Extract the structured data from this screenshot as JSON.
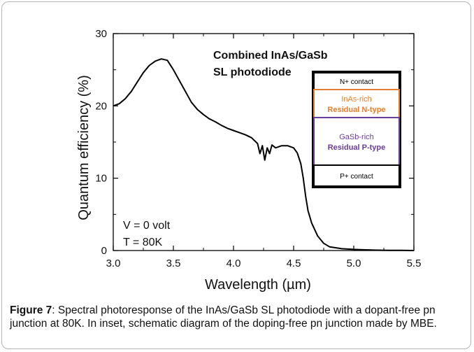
{
  "chart_data": {
    "type": "line",
    "xlabel": "Wavelength (µm)",
    "ylabel": "Quantum efficiency (%)",
    "xlim": [
      3.0,
      5.5
    ],
    "ylim": [
      0,
      30
    ],
    "xticks": [
      "3.0",
      "3.5",
      "4.0",
      "4.5",
      "5.0",
      "5.5"
    ],
    "yticks": [
      "0",
      "10",
      "20",
      "30"
    ],
    "grid": false,
    "series": [
      {
        "color": "#000000",
        "x": [
          3.0,
          3.05,
          3.1,
          3.15,
          3.2,
          3.25,
          3.3,
          3.35,
          3.4,
          3.45,
          3.5,
          3.55,
          3.6,
          3.65,
          3.7,
          3.75,
          3.8,
          3.85,
          3.9,
          3.95,
          4.0,
          4.05,
          4.1,
          4.15,
          4.2,
          4.22,
          4.24,
          4.26,
          4.28,
          4.3,
          4.32,
          4.35,
          4.4,
          4.45,
          4.5,
          4.53,
          4.56,
          4.58,
          4.6,
          4.62,
          4.65,
          4.7,
          4.75,
          4.8,
          4.9,
          5.0,
          5.1,
          5.2,
          5.3,
          5.4,
          5.5
        ],
        "y": [
          20.0,
          20.3,
          21.0,
          22.0,
          23.3,
          24.6,
          25.6,
          26.2,
          26.5,
          26.3,
          25.0,
          23.5,
          22.0,
          20.5,
          19.5,
          18.8,
          18.2,
          17.8,
          17.3,
          16.9,
          16.6,
          16.3,
          16.0,
          15.6,
          14.8,
          13.4,
          14.5,
          12.5,
          14.2,
          13.4,
          14.6,
          14.2,
          14.5,
          14.5,
          14.2,
          13.5,
          12.0,
          10.0,
          7.5,
          5.5,
          3.8,
          2.0,
          1.0,
          0.5,
          0.25,
          0.15,
          0.1,
          0.05,
          0.03,
          0.02,
          0.0
        ]
      }
    ],
    "annotations": {
      "title_line1": "Combined InAs/GaSb",
      "title_line2": "SL photodiode",
      "condition_voltage": "V = 0 volt",
      "condition_temperature": "T = 80K"
    },
    "inset_layers": [
      {
        "line1": "N+ contact",
        "line2": "",
        "border": "#000000",
        "color1": "#000000",
        "color2": ""
      },
      {
        "line1": "InAs-rich",
        "line2": "Residual N-type",
        "border": "#e87d2c",
        "color1": "#e87d2c",
        "color2": "#e87d2c"
      },
      {
        "line1": "GaSb-rich",
        "line2": "Residual P-type",
        "border": "#6a3d9a",
        "color1": "#6a3d9a",
        "color2": "#6a3d9a"
      },
      {
        "line1": "P+ contact",
        "line2": "",
        "border": "#000000",
        "color1": "#000000",
        "color2": ""
      }
    ]
  },
  "caption": {
    "label": "Figure 7",
    "text": ": Spectral photoresponse of the InAs/GaSb SL photodiode with a dopant-free pn junction at 80K. In inset, schematic diagram of the doping-free pn junction made by MBE."
  }
}
